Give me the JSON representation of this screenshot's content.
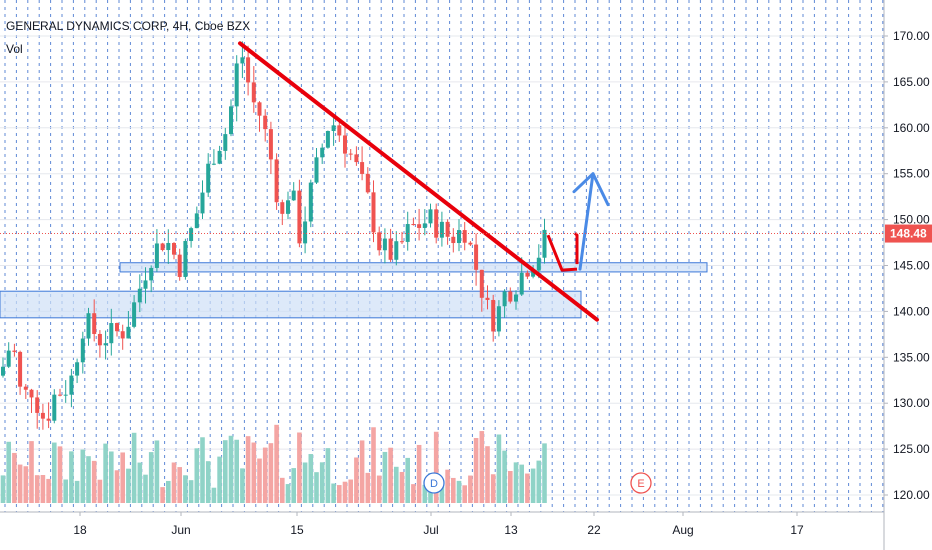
{
  "header": {
    "title": "GENERAL DYNAMICS CORP, 4H, Cboe BZX",
    "volume_label": "Vol"
  },
  "chart_data": {
    "type": "candlestick",
    "title": "GENERAL DYNAMICS CORP, 4H, Cboe BZX",
    "y_axis": {
      "ticks": [
        "120.00",
        "125.00",
        "130.00",
        "135.00",
        "140.00",
        "145.00",
        "150.00",
        "155.00",
        "160.00",
        "165.00",
        "170.00"
      ],
      "range": [
        118.5,
        172.5
      ]
    },
    "x_axis": {
      "ticks": [
        "18",
        "Jun",
        "15",
        "Jul",
        "13",
        "22",
        "Aug",
        "17"
      ]
    },
    "last_price": "148.48",
    "last_price_value": 148.48,
    "price_range_approx": [
      128,
      169
    ],
    "support_zones": [
      {
        "low": 144.3,
        "high": 145.3
      },
      {
        "low": 139.3,
        "high": 142.2
      }
    ],
    "trendline": {
      "from_price": 169.2,
      "to_price": 139.1
    },
    "projected_path": [
      148.3,
      144.5,
      144.6,
      155.0
    ],
    "event_markers": [
      "D",
      "E"
    ],
    "grid": true,
    "colors": {
      "up": "#26a69a",
      "down": "#ef5350",
      "volume_up": "#8fd3c7",
      "volume_down": "#f4a5a3",
      "trendline": "#e8000b",
      "projection_arrow": "#4a8ae6",
      "zone_fill": "#cfe0f7",
      "zone_border": "#3c78d8",
      "price_badge": "#ef5350",
      "grid": "#2a62c9"
    }
  }
}
